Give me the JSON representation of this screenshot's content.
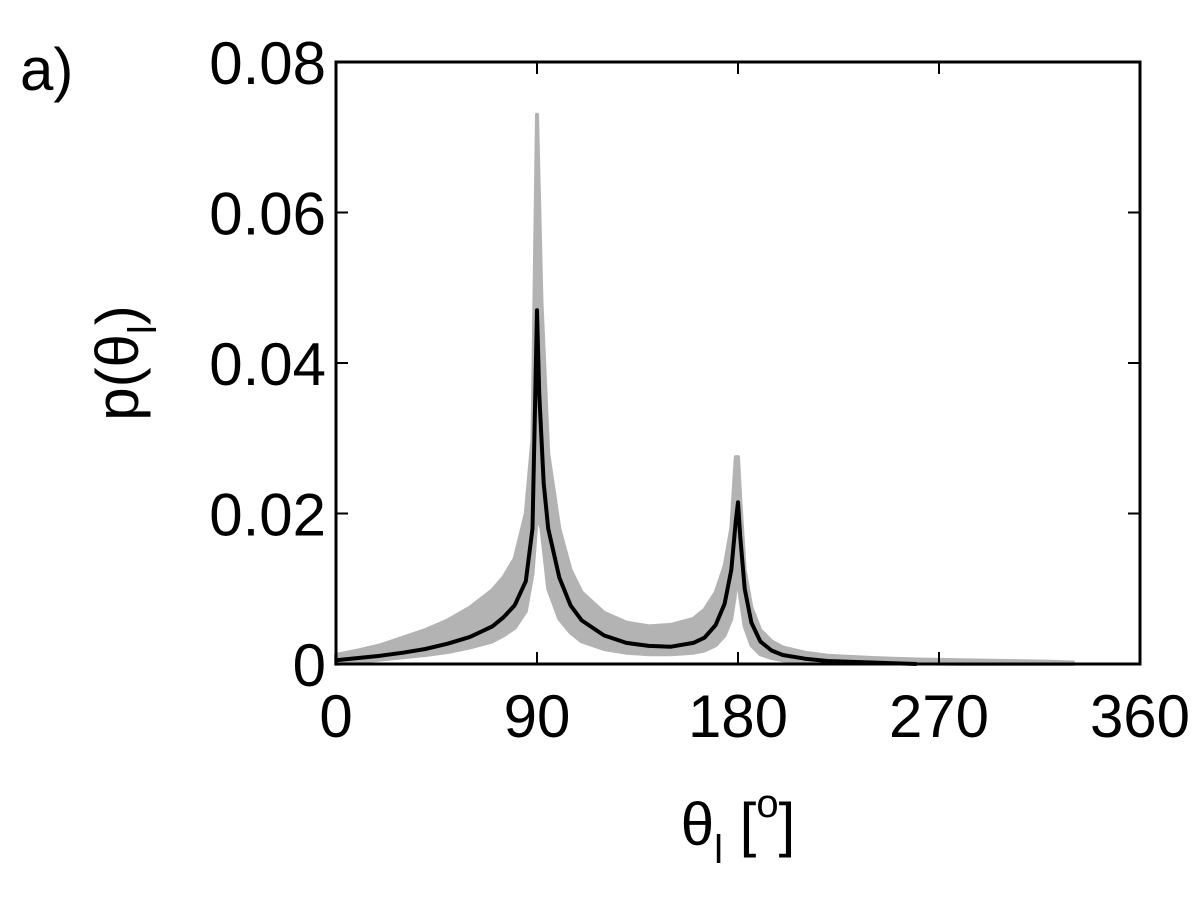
{
  "chart_data": {
    "type": "line",
    "panel_label": "a)",
    "xlabel": {
      "symbol": "θ",
      "sub": "l",
      "unit_open": " [",
      "unit_sup": "o",
      "unit_close": "]"
    },
    "ylabel": {
      "prefix": "p(θ",
      "sub": "l",
      "suffix": ")"
    },
    "xlim": [
      0,
      360
    ],
    "ylim": [
      0,
      0.08
    ],
    "xticks": [
      0,
      90,
      180,
      270,
      360
    ],
    "xtick_labels": [
      "0",
      "90",
      "180",
      "270",
      "360"
    ],
    "yticks": [
      0,
      0.02,
      0.04,
      0.06,
      0.08
    ],
    "ytick_labels": [
      "0",
      "0.02",
      "0.04",
      "0.06",
      "0.08"
    ],
    "grid": false,
    "series": [
      {
        "color": "#b3b3b3",
        "band": true,
        "x": [
          0,
          10,
          20,
          30,
          40,
          50,
          60,
          70,
          75,
          80,
          85,
          88,
          90,
          92,
          95,
          100,
          105,
          110,
          120,
          130,
          140,
          150,
          160,
          165,
          170,
          174,
          177,
          179,
          180,
          181,
          183,
          186,
          190,
          195,
          200,
          210,
          220,
          240,
          260,
          280,
          300,
          320,
          330
        ],
        "upper": [
          0.0012,
          0.0018,
          0.0025,
          0.0035,
          0.0045,
          0.0058,
          0.0075,
          0.0098,
          0.0115,
          0.014,
          0.02,
          0.03,
          0.073,
          0.048,
          0.028,
          0.018,
          0.0125,
          0.0095,
          0.0068,
          0.0055,
          0.005,
          0.0052,
          0.006,
          0.0072,
          0.0095,
          0.013,
          0.018,
          0.0275,
          0.0275,
          0.022,
          0.0125,
          0.0075,
          0.0045,
          0.003,
          0.0022,
          0.0015,
          0.0011,
          0.0008,
          0.0006,
          0.0005,
          0.0004,
          0.0003,
          0.0002
        ],
        "lower": [
          0.0,
          0.0003,
          0.0006,
          0.0009,
          0.0012,
          0.0016,
          0.0022,
          0.003,
          0.0038,
          0.0048,
          0.007,
          0.012,
          0.02,
          0.018,
          0.01,
          0.006,
          0.0042,
          0.003,
          0.002,
          0.0015,
          0.0013,
          0.0013,
          0.0015,
          0.0018,
          0.0025,
          0.0038,
          0.006,
          0.01,
          0.012,
          0.009,
          0.005,
          0.0025,
          0.0013,
          0.0008,
          0.0005,
          0.0003,
          0.0002,
          0.0001,
          0.0001,
          0.0,
          0.0,
          0.0,
          0.0
        ]
      },
      {
        "color": "#000000",
        "band": false,
        "x": [
          0,
          10,
          20,
          30,
          40,
          50,
          60,
          70,
          75,
          80,
          85,
          88,
          90,
          91,
          93,
          95,
          100,
          105,
          110,
          120,
          130,
          140,
          150,
          160,
          165,
          170,
          174,
          177,
          179,
          180,
          181,
          183,
          186,
          190,
          195,
          200,
          210,
          220,
          240,
          260
        ],
        "values": [
          0.0005,
          0.0008,
          0.0011,
          0.0015,
          0.002,
          0.0027,
          0.0036,
          0.005,
          0.0062,
          0.0078,
          0.011,
          0.018,
          0.047,
          0.036,
          0.024,
          0.018,
          0.0115,
          0.0078,
          0.0058,
          0.0038,
          0.0028,
          0.0024,
          0.0023,
          0.0028,
          0.0035,
          0.0052,
          0.008,
          0.0125,
          0.019,
          0.0215,
          0.017,
          0.01,
          0.0055,
          0.003,
          0.0018,
          0.0012,
          0.0007,
          0.0004,
          0.0002,
          0.0
        ]
      }
    ]
  }
}
